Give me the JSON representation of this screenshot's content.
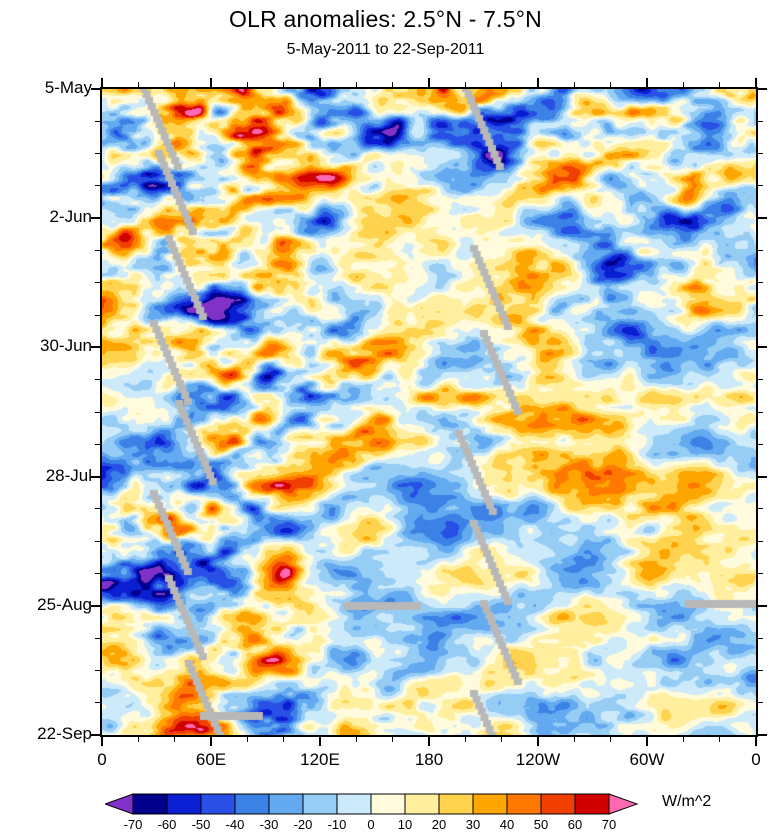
{
  "page": {
    "background": "#ffffff",
    "text_color": "#000000"
  },
  "chart_data": {
    "type": "heatmap",
    "title": "OLR anomalies: 2.5°N - 7.5°N",
    "subtitle": "5-May-2011 to 22-Sep-2011",
    "x_axis": {
      "ticks": [
        "0",
        "60E",
        "120E",
        "180",
        "120W",
        "60W",
        "0"
      ],
      "tick_lons_deg": [
        0,
        60,
        120,
        180,
        240,
        300,
        360
      ],
      "minor_step_deg": 20,
      "range_deg": [
        0,
        360
      ]
    },
    "y_axis": {
      "ticks": [
        "5-May",
        "2-Jun",
        "30-Jun",
        "28-Jul",
        "25-Aug",
        "22-Sep"
      ],
      "tick_days": [
        0,
        28,
        56,
        84,
        112,
        140
      ],
      "total_days": 140,
      "minor_step_days": 7,
      "direction": "time increases downward"
    },
    "colorbar": {
      "units": "W/m^2",
      "levels": [
        -70,
        -60,
        -50,
        -40,
        -30,
        -20,
        -10,
        0,
        10,
        20,
        30,
        40,
        50,
        60,
        70
      ],
      "colors": [
        "#8032c8",
        "#00008c",
        "#0a1ed2",
        "#2850e6",
        "#3c82e6",
        "#64aaf0",
        "#96cdf5",
        "#cdeafa",
        "#fffbdc",
        "#ffef9e",
        "#ffd34d",
        "#ffa500",
        "#ff7800",
        "#f04000",
        "#d00000",
        "#ff69b4"
      ],
      "missing_color": "#b8b8b8"
    }
  }
}
